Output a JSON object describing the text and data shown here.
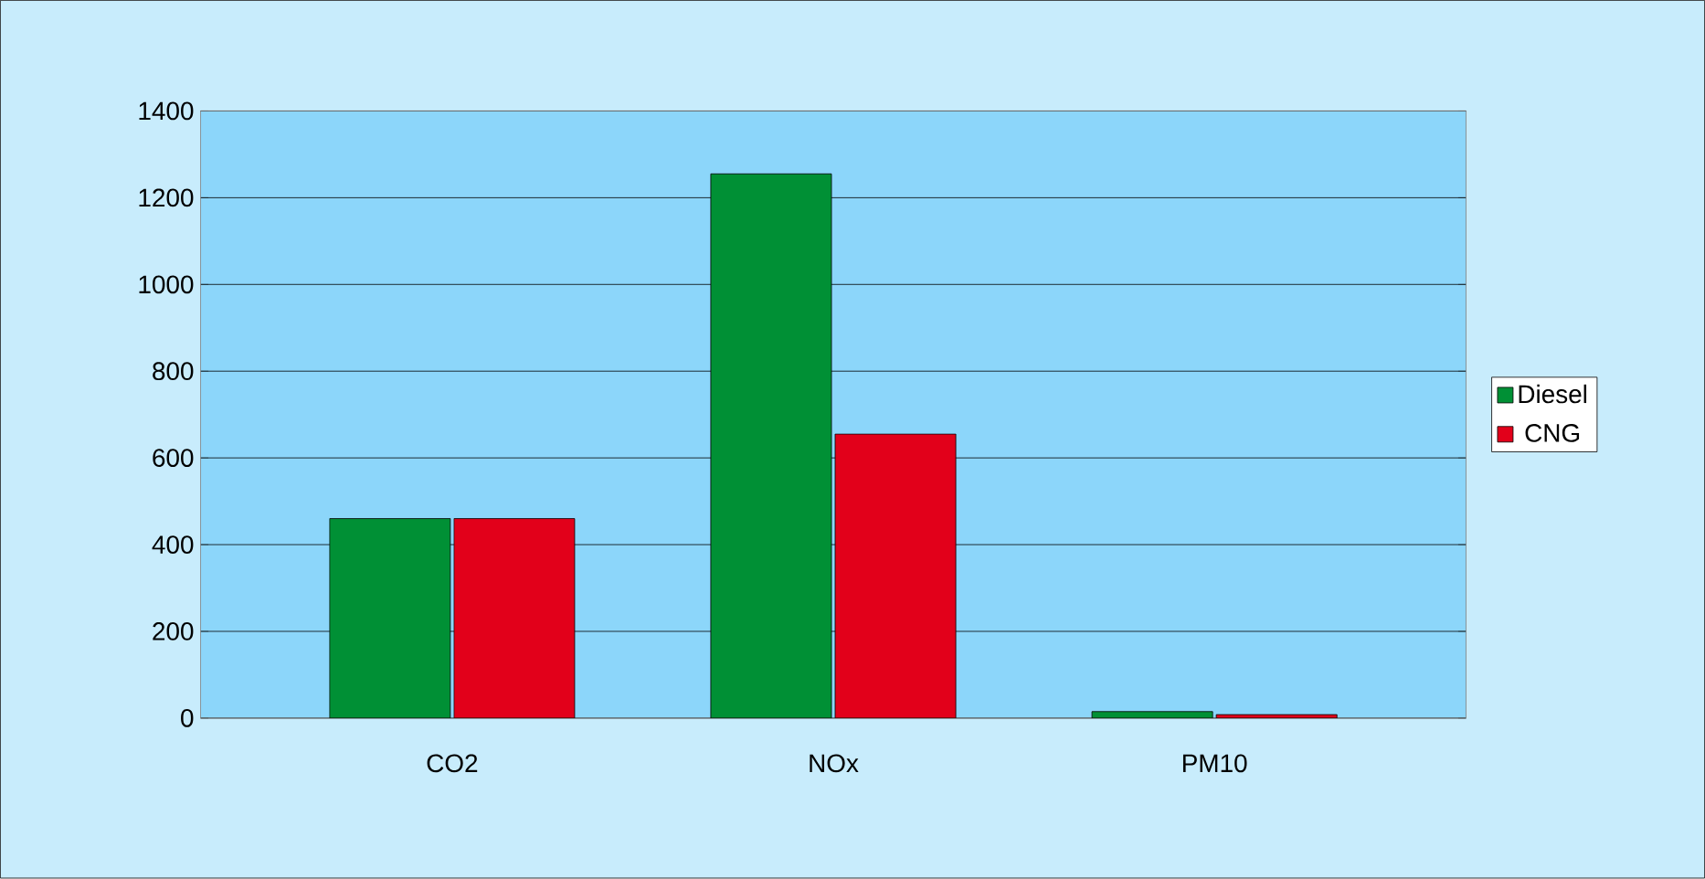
{
  "chart_data": {
    "type": "bar",
    "categories": [
      "CO2",
      "NOx",
      "PM10"
    ],
    "series": [
      {
        "name": "Diesel",
        "color": "#009035",
        "values": [
          460,
          1255,
          15
        ]
      },
      {
        "name": "CNG",
        "color": "#e2001a",
        "values": [
          460,
          655,
          8
        ]
      }
    ],
    "ylim": [
      0,
      1400
    ],
    "yticks": [
      0,
      200,
      400,
      600,
      800,
      1000,
      1200,
      1400
    ],
    "grid": "y",
    "legend": "right"
  }
}
